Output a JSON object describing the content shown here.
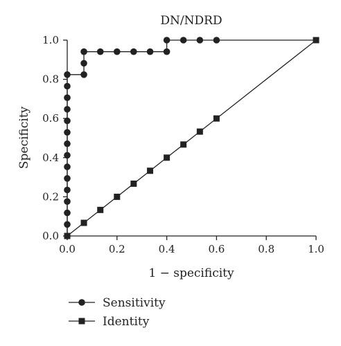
{
  "chart_data": {
    "type": "line",
    "title": "DN/NDRD",
    "xlabel": "1 − specificity",
    "ylabel": "Specificity",
    "xlim": [
      0,
      1
    ],
    "ylim": [
      0,
      1
    ],
    "xticks": [
      "0.0",
      "0.2",
      "0.4",
      "0.6",
      "0.8",
      "1.0"
    ],
    "yticks": [
      "0.0",
      "0.2",
      "0.4",
      "0.6",
      "0.8",
      "1.0"
    ],
    "grid": false,
    "legend_position": "bottom-left",
    "series": [
      {
        "name": "Sensitivity",
        "marker": "circle",
        "color": "#222222",
        "points": [
          [
            0,
            0
          ],
          [
            0,
            0.059
          ],
          [
            0,
            0.118
          ],
          [
            0,
            0.176
          ],
          [
            0,
            0.235
          ],
          [
            0,
            0.294
          ],
          [
            0,
            0.353
          ],
          [
            0,
            0.412
          ],
          [
            0,
            0.471
          ],
          [
            0,
            0.529
          ],
          [
            0,
            0.588
          ],
          [
            0,
            0.647
          ],
          [
            0,
            0.706
          ],
          [
            0,
            0.765
          ],
          [
            0,
            0.824
          ],
          [
            0.067,
            0.824
          ],
          [
            0.067,
            0.882
          ],
          [
            0.067,
            0.941
          ],
          [
            0.133,
            0.941
          ],
          [
            0.2,
            0.941
          ],
          [
            0.267,
            0.941
          ],
          [
            0.333,
            0.941
          ],
          [
            0.4,
            0.941
          ],
          [
            0.4,
            1.0
          ],
          [
            0.467,
            1.0
          ],
          [
            0.533,
            1.0
          ],
          [
            0.6,
            1.0
          ],
          [
            1.0,
            1.0
          ]
        ],
        "marked": [
          [
            0,
            0
          ],
          [
            0,
            0.059
          ],
          [
            0,
            0.118
          ],
          [
            0,
            0.176
          ],
          [
            0,
            0.235
          ],
          [
            0,
            0.294
          ],
          [
            0,
            0.353
          ],
          [
            0,
            0.412
          ],
          [
            0,
            0.471
          ],
          [
            0,
            0.529
          ],
          [
            0,
            0.588
          ],
          [
            0,
            0.647
          ],
          [
            0,
            0.706
          ],
          [
            0,
            0.765
          ],
          [
            0,
            0.824
          ],
          [
            0.067,
            0.824
          ],
          [
            0.067,
            0.882
          ],
          [
            0.067,
            0.941
          ],
          [
            0.133,
            0.941
          ],
          [
            0.2,
            0.941
          ],
          [
            0.267,
            0.941
          ],
          [
            0.333,
            0.941
          ],
          [
            0.4,
            0.941
          ],
          [
            0.4,
            1.0
          ],
          [
            0.467,
            1.0
          ],
          [
            0.533,
            1.0
          ],
          [
            0.6,
            1.0
          ]
        ]
      },
      {
        "name": "Identity",
        "marker": "square",
        "color": "#222222",
        "points": [
          [
            0,
            0
          ],
          [
            0.067,
            0.067
          ],
          [
            0.133,
            0.133
          ],
          [
            0.2,
            0.2
          ],
          [
            0.267,
            0.267
          ],
          [
            0.333,
            0.333
          ],
          [
            0.4,
            0.4
          ],
          [
            0.467,
            0.467
          ],
          [
            0.533,
            0.533
          ],
          [
            0.6,
            0.6
          ],
          [
            1.0,
            1.0
          ]
        ],
        "marked": [
          [
            0,
            0
          ],
          [
            0.067,
            0.067
          ],
          [
            0.133,
            0.133
          ],
          [
            0.2,
            0.2
          ],
          [
            0.267,
            0.267
          ],
          [
            0.333,
            0.333
          ],
          [
            0.4,
            0.4
          ],
          [
            0.467,
            0.467
          ],
          [
            0.533,
            0.533
          ],
          [
            0.6,
            0.6
          ],
          [
            1.0,
            1.0
          ]
        ]
      }
    ]
  }
}
